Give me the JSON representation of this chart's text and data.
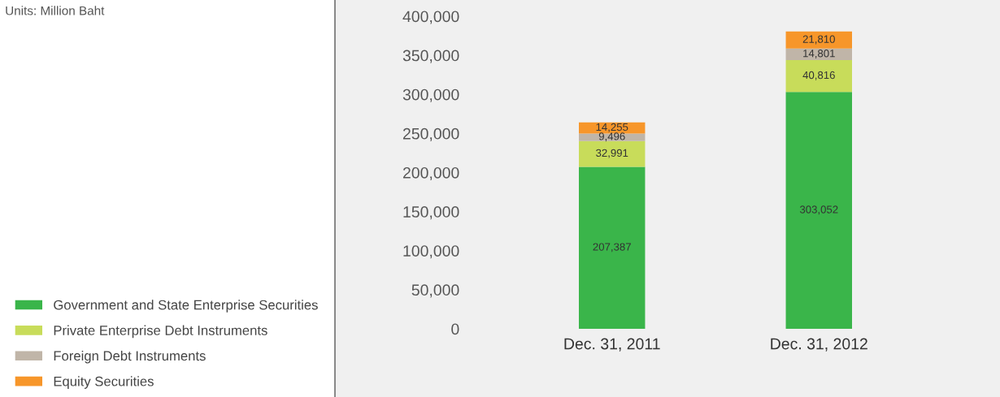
{
  "chart_data": {
    "type": "bar",
    "stacked": true,
    "categories": [
      "Dec. 31, 2011",
      "Dec. 31, 2012"
    ],
    "series": [
      {
        "name": "Government and State Enterprise Securities",
        "color": "#3ab54a",
        "values": [
          207387,
          303052
        ],
        "value_labels": [
          "207,387",
          "303,052"
        ]
      },
      {
        "name": "Private Enterprise Debt Instruments",
        "color": "#c8dc5a",
        "values": [
          32991,
          40816
        ],
        "value_labels": [
          "32,991",
          "40,816"
        ]
      },
      {
        "name": "Foreign Debt Instruments",
        "color": "#c0b5a8",
        "values": [
          9496,
          14801
        ],
        "value_labels": [
          "9,496",
          "14,801"
        ]
      },
      {
        "name": "Equity Securities",
        "color": "#f7962a",
        "values": [
          14255,
          21810
        ],
        "value_labels": [
          "14,255",
          "21,810"
        ]
      }
    ],
    "ylim": [
      0,
      400000
    ],
    "yticks": [
      {
        "value": 0,
        "label": "0"
      },
      {
        "value": 50000,
        "label": "50,000"
      },
      {
        "value": 100000,
        "label": "100,000"
      },
      {
        "value": 150000,
        "label": "150,000"
      },
      {
        "value": 200000,
        "label": "200,000"
      },
      {
        "value": 250000,
        "label": "250,000"
      },
      {
        "value": 300000,
        "label": "300,000"
      },
      {
        "value": 350000,
        "label": "350,000"
      },
      {
        "value": 400000,
        "label": "400,000"
      }
    ],
    "legend": "left",
    "grid": false,
    "annotations": [
      "Units: Million Baht"
    ]
  }
}
